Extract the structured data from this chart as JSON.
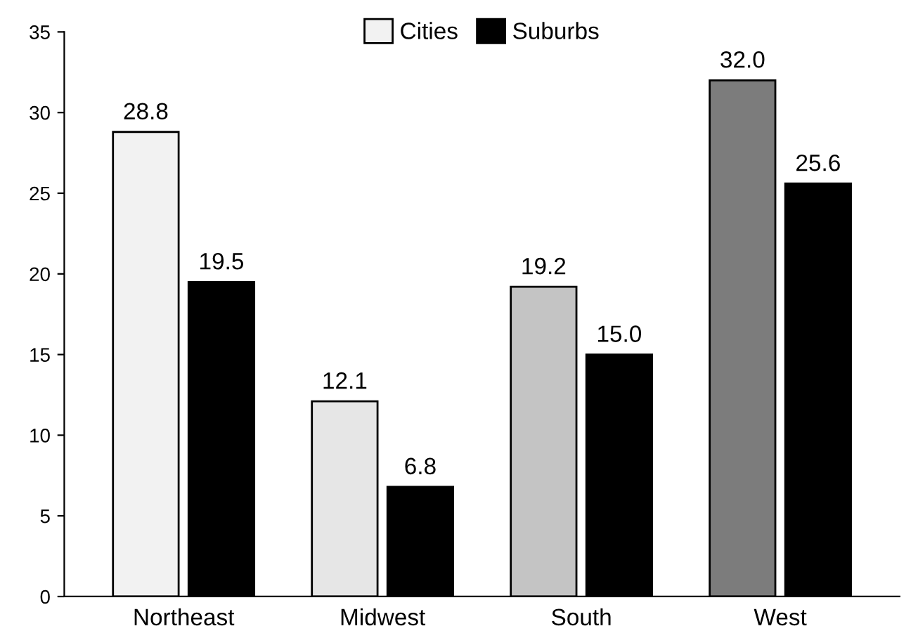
{
  "chart_data": {
    "type": "bar",
    "categories": [
      "Northeast",
      "Midwest",
      "South",
      "West"
    ],
    "series": [
      {
        "name": "Cities",
        "color": "#f2f2f2",
        "colors": [
          "#f2f2f2",
          "#e6e6e6",
          "#c4c4c4",
          "#7c7c7c"
        ],
        "values": [
          28.8,
          12.1,
          19.2,
          32.0
        ],
        "value_labels": [
          "28.8",
          "12.1",
          "19.2",
          "32.0"
        ]
      },
      {
        "name": "Suburbs",
        "color": "#000000",
        "values": [
          19.5,
          6.8,
          15.0,
          25.6
        ],
        "value_labels": [
          "19.5",
          "6.8",
          "15.0",
          "25.6"
        ]
      }
    ],
    "ylim": [
      0,
      35
    ],
    "yticks": [
      0,
      5,
      10,
      15,
      20,
      25,
      30,
      35
    ],
    "legend": "top"
  }
}
